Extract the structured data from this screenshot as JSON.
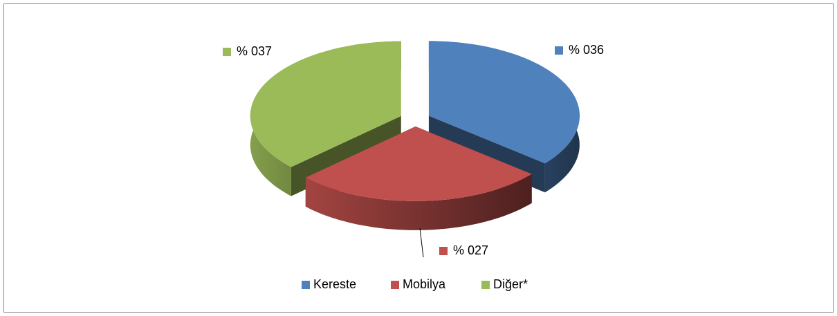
{
  "chart_data": {
    "type": "pie3d",
    "categories": [
      "Kereste",
      "Mobilya",
      "Diğer*"
    ],
    "values": [
      36,
      27,
      37
    ],
    "value_labels": [
      "% 036",
      "% 027",
      "% 037"
    ],
    "colors": [
      "#4f81bd",
      "#c0504d",
      "#9bbb59"
    ],
    "legend": "bottom"
  }
}
